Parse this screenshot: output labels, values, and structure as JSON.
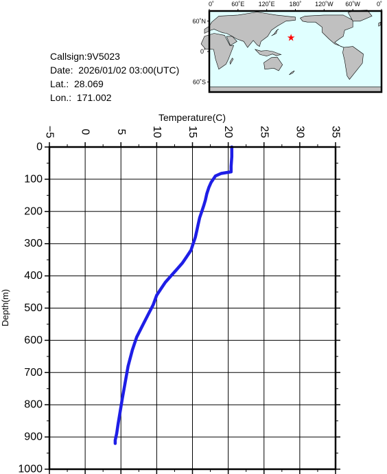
{
  "info": {
    "callsign": "Callsign:9V5023",
    "date": "Date:  2026/01/02 03:00(UTC)",
    "lat": "Lat.:  28.069",
    "lon": "Lon.:  171.002"
  },
  "map": {
    "lon_labels": [
      "0˚",
      "60˚E",
      "120˚E",
      "180˚",
      "120˚W",
      "60˚W",
      "0˚"
    ],
    "lat_labels": [
      "60˚N",
      "0˚",
      "60˚S"
    ],
    "marker": {
      "lat": 28.069,
      "lon": 171.002,
      "color": "#ff0000"
    },
    "land_color": "#c0c0c0",
    "ocean_color": "#e0ffff"
  },
  "chart_data": {
    "type": "line",
    "xlabel": "Temperature(C)",
    "ylabel": "Depth(m)",
    "xlim": [
      -5,
      35
    ],
    "ylim": [
      0,
      1000
    ],
    "y_inverted": true,
    "x_ticks": [
      -5,
      0,
      5,
      10,
      15,
      20,
      25,
      30,
      35
    ],
    "y_ticks": [
      0,
      100,
      200,
      300,
      400,
      500,
      600,
      700,
      800,
      900,
      1000
    ],
    "grid": true,
    "line_color": "#1e1ee6",
    "series": [
      {
        "x": [
          20.5,
          20.5,
          20.4,
          20.4,
          19.0,
          18.2,
          17.6,
          17.3,
          17.0,
          16.8,
          16.6,
          16.3,
          16.0,
          15.8,
          15.6,
          15.4,
          15.1,
          14.8,
          14.2,
          13.6,
          12.8,
          12.0,
          11.2,
          10.6,
          10.0,
          9.5,
          8.8,
          8.0,
          7.2,
          6.6,
          6.0,
          5.6,
          5.2,
          4.9,
          4.6,
          4.4,
          4.2,
          4.2
        ],
        "y": [
          0,
          30,
          60,
          77,
          82,
          90,
          110,
          125,
          145,
          165,
          180,
          200,
          220,
          240,
          260,
          280,
          300,
          320,
          340,
          360,
          380,
          400,
          420,
          440,
          460,
          490,
          520,
          555,
          590,
          630,
          680,
          730,
          780,
          820,
          860,
          890,
          910,
          920
        ]
      }
    ]
  }
}
